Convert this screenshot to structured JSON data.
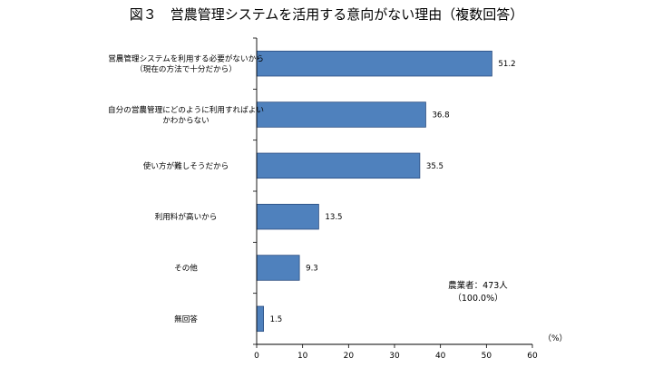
{
  "chart_data": {
    "type": "bar",
    "orientation": "horizontal",
    "title": "図３　営農管理システムを活用する意向がない理由（複数回答）",
    "categories": [
      [
        "営農管理システムを利用する必要がないから",
        "（現在の方法で十分だから）"
      ],
      [
        "自分の営農管理にどのように利用すればよい",
        "かわからない"
      ],
      [
        "使い方が難しそうだから"
      ],
      [
        "利用料が高いから"
      ],
      [
        "その他"
      ],
      [
        "無回答"
      ]
    ],
    "values": [
      51.2,
      36.8,
      35.5,
      13.5,
      9.3,
      1.5
    ],
    "value_labels": [
      "51.2",
      "36.8",
      "35.5",
      "13.5",
      "9.3",
      "1.5"
    ],
    "xlim": [
      0,
      60
    ],
    "ticks": [
      0,
      10,
      20,
      30,
      40,
      50,
      60
    ],
    "tick_labels": [
      "0",
      "10",
      "20",
      "30",
      "40",
      "50",
      "60"
    ],
    "unit_label": "（%）",
    "grid": false,
    "bar_color": "#4f81bd",
    "bar_edge_color": "#2a4d80",
    "annotation": [
      "農業者：473人",
      "（100.0%）"
    ]
  }
}
